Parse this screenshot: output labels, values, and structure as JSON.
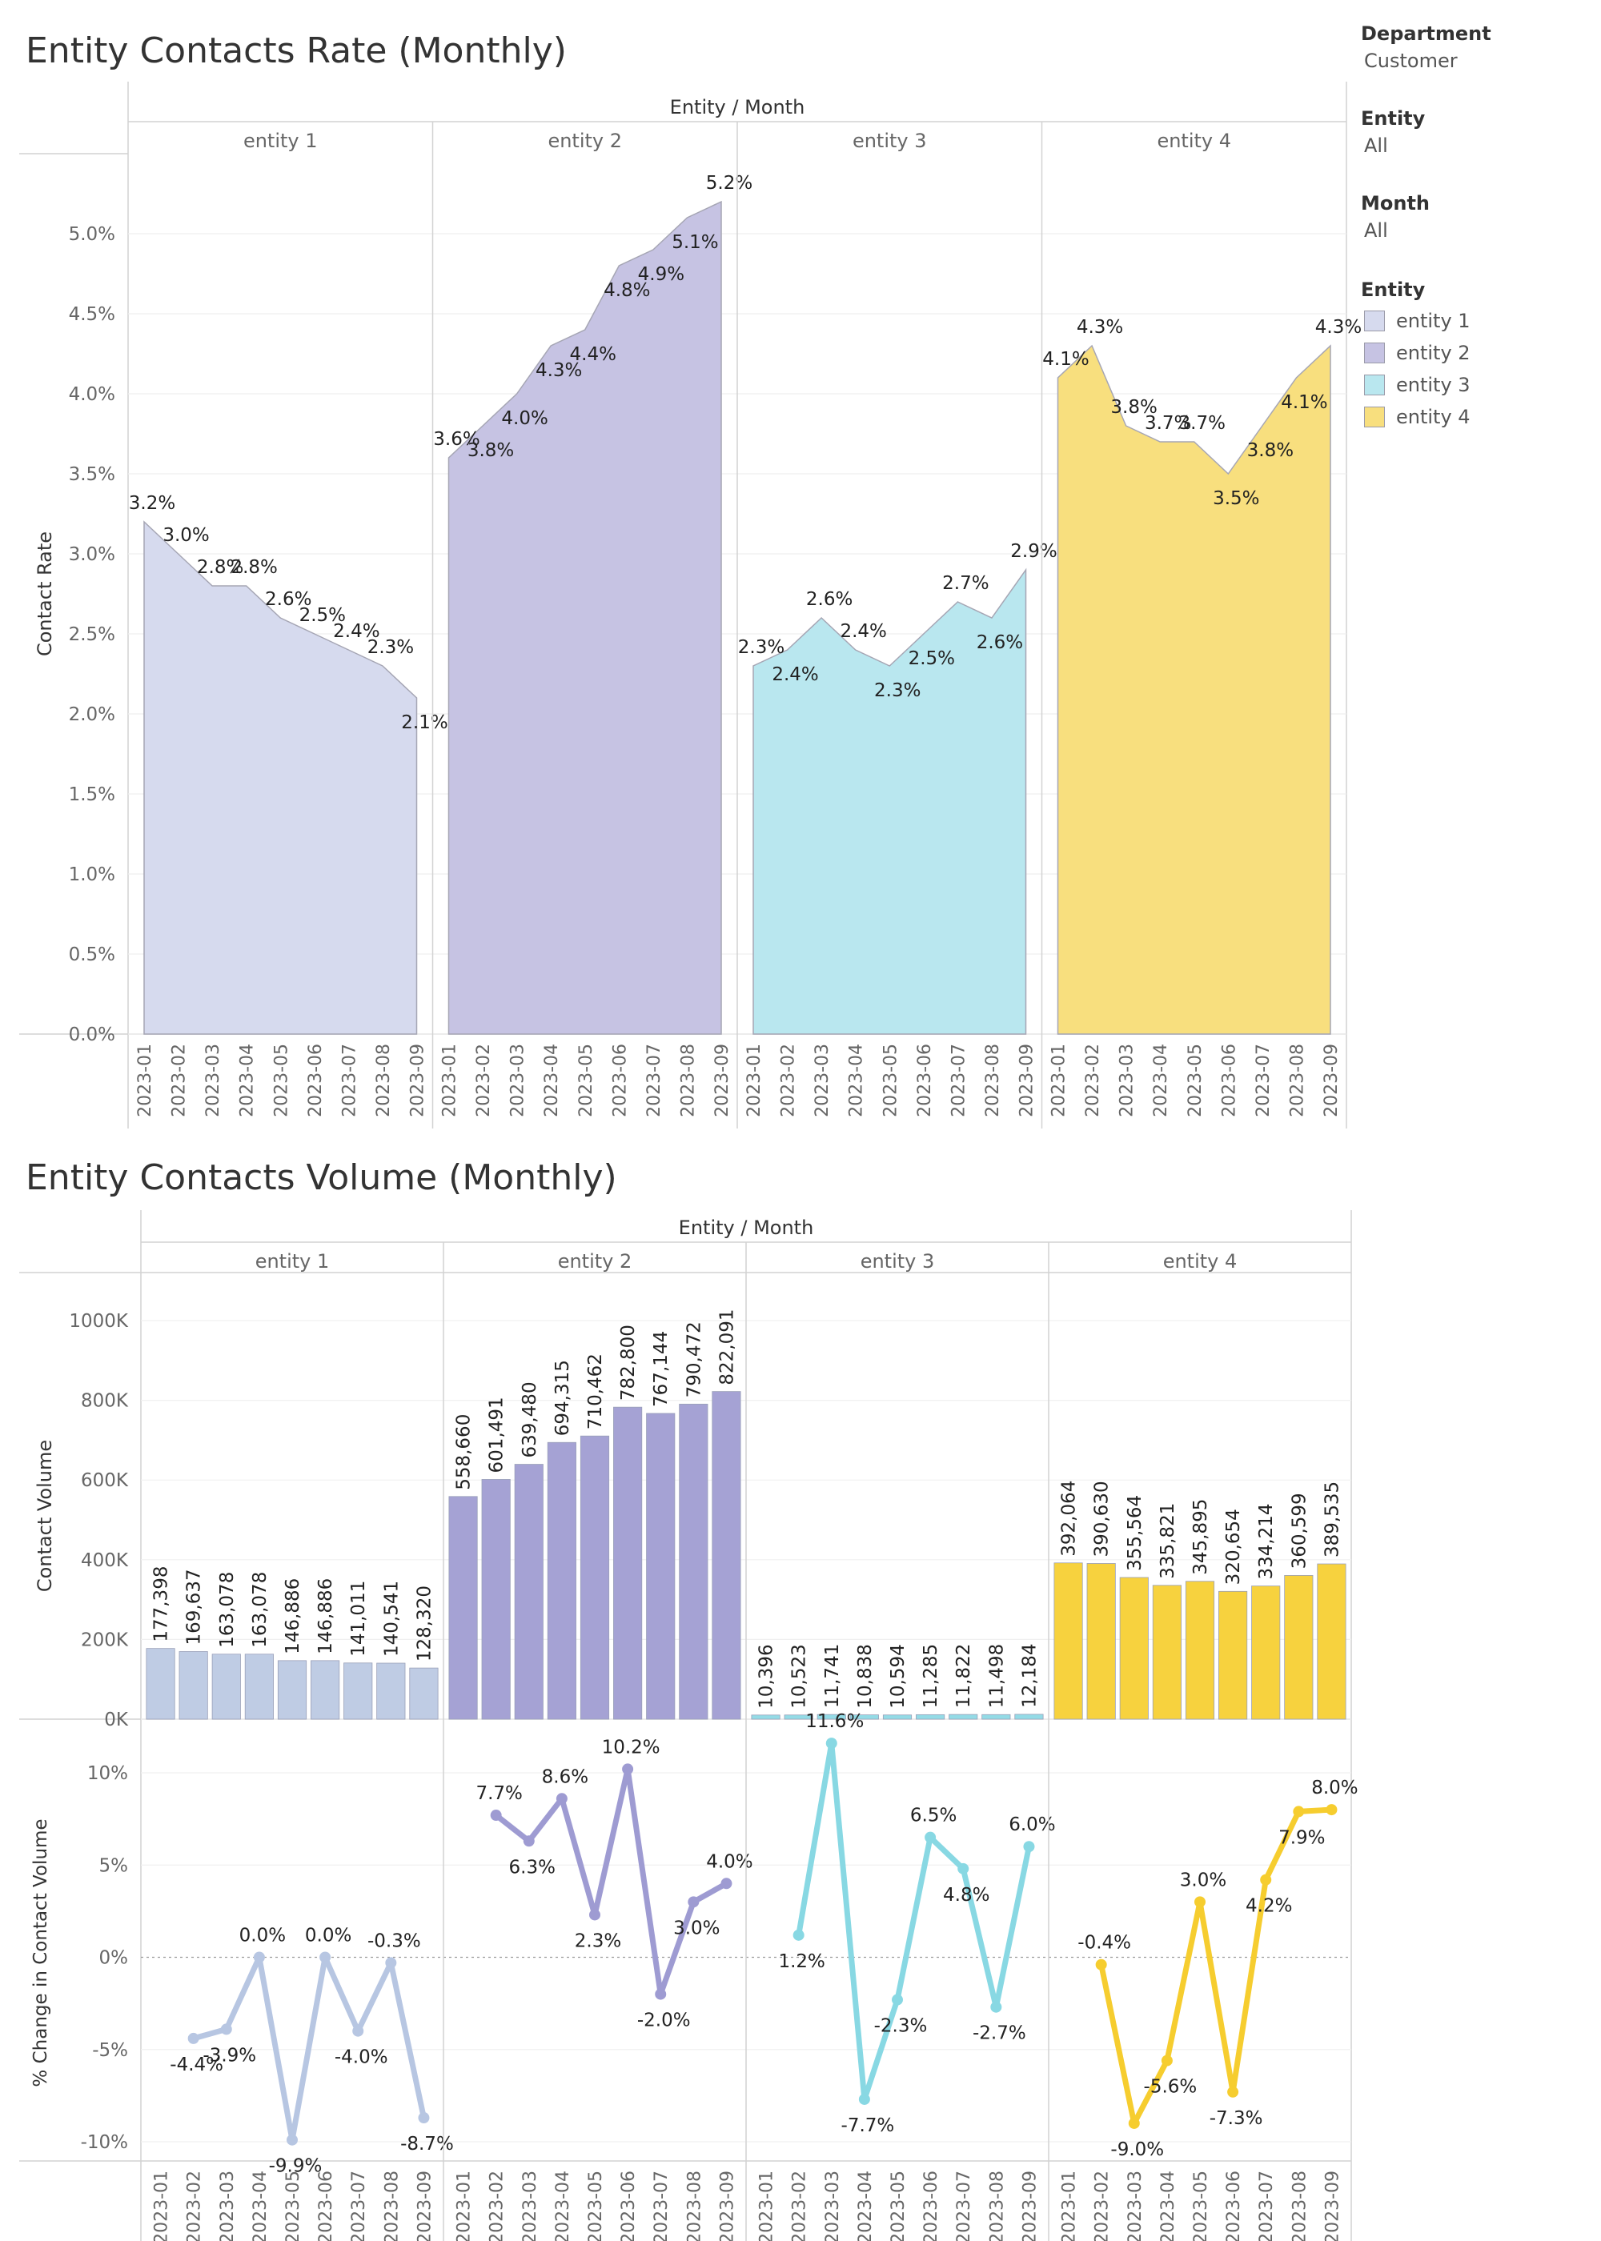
{
  "filters": [
    {
      "label": "Department",
      "value": "Customer"
    },
    {
      "label": "Entity",
      "value": "All"
    },
    {
      "label": "Month",
      "value": "All"
    }
  ],
  "legend": {
    "title": "Entity",
    "items": [
      {
        "label": "entity 1",
        "color": "#d6daee"
      },
      {
        "label": "entity 2",
        "color": "#c6c3e3"
      },
      {
        "label": "entity 3",
        "color": "#b9e7ef"
      },
      {
        "label": "entity 4",
        "color": "#f8df7e"
      }
    ]
  },
  "colors": {
    "rate_fill": [
      "#d6daee",
      "#c6c3e3",
      "#b9e7ef",
      "#f8df7e"
    ],
    "bar_fill": [
      "#bfcce4",
      "#a5a2d4",
      "#94dbe6",
      "#f7d23e"
    ],
    "line": [
      "#b7c6e2",
      "#9e9bd2",
      "#88d8e3",
      "#f6cd2f"
    ]
  },
  "chart_data": [
    {
      "type": "area",
      "title": "Entity Contacts Rate (Monthly)",
      "column_header": "Entity / Month",
      "ylabel": "Contact Rate",
      "ylim": [
        0,
        5.5
      ],
      "yticks": [
        "0.0%",
        "0.5%",
        "1.0%",
        "1.5%",
        "2.0%",
        "2.5%",
        "3.0%",
        "3.5%",
        "4.0%",
        "4.5%",
        "5.0%"
      ],
      "grid": true,
      "months": [
        "2023-01",
        "2023-02",
        "2023-03",
        "2023-04",
        "2023-05",
        "2023-06",
        "2023-07",
        "2023-08",
        "2023-09"
      ],
      "series": [
        {
          "name": "entity 1",
          "values": [
            3.2,
            3.0,
            2.8,
            2.8,
            2.6,
            2.5,
            2.4,
            2.3,
            2.1
          ],
          "labels": [
            "3.2%",
            "3.0%",
            "2.8%",
            "2.8%",
            "2.6%",
            "2.5%",
            "2.4%",
            "2.3%",
            "2.1%"
          ]
        },
        {
          "name": "entity 2",
          "values": [
            3.6,
            3.8,
            4.0,
            4.3,
            4.4,
            4.8,
            4.9,
            5.1,
            5.2
          ],
          "labels": [
            "3.6%",
            "3.8%",
            "4.0%",
            "4.3%",
            "4.4%",
            "4.8%",
            "4.9%",
            "5.1%",
            "5.2%"
          ]
        },
        {
          "name": "entity 3",
          "values": [
            2.3,
            2.4,
            2.6,
            2.4,
            2.3,
            2.5,
            2.7,
            2.6,
            2.9
          ],
          "labels": [
            "2.3%",
            "2.4%",
            "2.6%",
            "2.4%",
            "2.3%",
            "2.5%",
            "2.7%",
            "2.6%",
            "2.9%"
          ]
        },
        {
          "name": "entity 4",
          "values": [
            4.1,
            4.3,
            3.8,
            3.7,
            3.7,
            3.5,
            3.8,
            4.1,
            4.3
          ],
          "labels": [
            "4.1%",
            "4.3%",
            "3.8%",
            "3.7%",
            "3.7%",
            "3.5%",
            "3.8%",
            "4.1%",
            "4.3%"
          ]
        }
      ]
    },
    {
      "type": "bar",
      "title": "Entity Contacts Volume (Monthly)",
      "column_header": "Entity / Month",
      "ylabel": "Contact Volume",
      "ylim": [
        0,
        1000000
      ],
      "yticks": [
        "0K",
        "200K",
        "400K",
        "600K",
        "800K",
        "1000K"
      ],
      "months": [
        "2023-01",
        "2023-02",
        "2023-03",
        "2023-04",
        "2023-05",
        "2023-06",
        "2023-07",
        "2023-08",
        "2023-09"
      ],
      "series": [
        {
          "name": "entity 1",
          "values": [
            177398,
            169637,
            163078,
            163078,
            146886,
            146886,
            141011,
            140541,
            128320
          ],
          "labels": [
            "177,398",
            "169,637",
            "163,078",
            "163,078",
            "146,886",
            "146,886",
            "141,011",
            "140,541",
            "128,320"
          ]
        },
        {
          "name": "entity 2",
          "values": [
            558660,
            601491,
            639480,
            694315,
            710462,
            782800,
            767144,
            790472,
            822091
          ],
          "labels": [
            "558,660",
            "601,491",
            "639,480",
            "694,315",
            "710,462",
            "782,800",
            "767,144",
            "790,472",
            "822,091"
          ]
        },
        {
          "name": "entity 3",
          "values": [
            10396,
            10523,
            11741,
            10838,
            10594,
            11285,
            11822,
            11498,
            12184
          ],
          "labels": [
            "10,396",
            "10,523",
            "11,741",
            "10,838",
            "10,594",
            "11,285",
            "11,822",
            "11,498",
            "12,184"
          ]
        },
        {
          "name": "entity 4",
          "values": [
            392064,
            390630,
            355564,
            335821,
            345895,
            320654,
            334214,
            360599,
            389535
          ],
          "labels": [
            "392,064",
            "390,630",
            "355,564",
            "335,821",
            "345,895",
            "320,654",
            "334,214",
            "360,599",
            "389,535"
          ]
        }
      ]
    },
    {
      "type": "line",
      "ylabel": "% Change in Contact Volume",
      "ylim": [
        -10,
        10
      ],
      "yticks": [
        "-10%",
        "-5%",
        "0%",
        "5%",
        "10%"
      ],
      "months": [
        "2023-01",
        "2023-02",
        "2023-03",
        "2023-04",
        "2023-05",
        "2023-06",
        "2023-07",
        "2023-08",
        "2023-09"
      ],
      "series": [
        {
          "name": "entity 1",
          "values": [
            null,
            -4.4,
            -3.9,
            0.0,
            -9.9,
            0.0,
            -4.0,
            -0.3,
            -8.7
          ],
          "labels": [
            null,
            "-4.4%",
            "-3.9%",
            "0.0%",
            "-9.9%",
            "0.0%",
            "-4.0%",
            "-0.3%",
            "-8.7%"
          ]
        },
        {
          "name": "entity 2",
          "values": [
            null,
            7.7,
            6.3,
            8.6,
            2.3,
            10.2,
            -2.0,
            3.0,
            4.0
          ],
          "labels": [
            null,
            "7.7%",
            "6.3%",
            "8.6%",
            "2.3%",
            "10.2%",
            "-2.0%",
            "3.0%",
            "4.0%"
          ]
        },
        {
          "name": "entity 3",
          "values": [
            null,
            1.2,
            11.6,
            -7.7,
            -2.3,
            6.5,
            4.8,
            -2.7,
            6.0
          ],
          "labels": [
            null,
            "1.2%",
            "11.6%",
            "-7.7%",
            "-2.3%",
            "6.5%",
            "4.8%",
            "-2.7%",
            "6.0%"
          ]
        },
        {
          "name": "entity 4",
          "values": [
            null,
            -0.4,
            -9.0,
            -5.6,
            3.0,
            -7.3,
            4.2,
            7.9,
            8.0
          ],
          "labels": [
            null,
            "-0.4%",
            "-9.0%",
            "-5.6%",
            "3.0%",
            "-7.3%",
            "4.2%",
            "7.9%",
            "8.0%"
          ]
        }
      ]
    }
  ]
}
